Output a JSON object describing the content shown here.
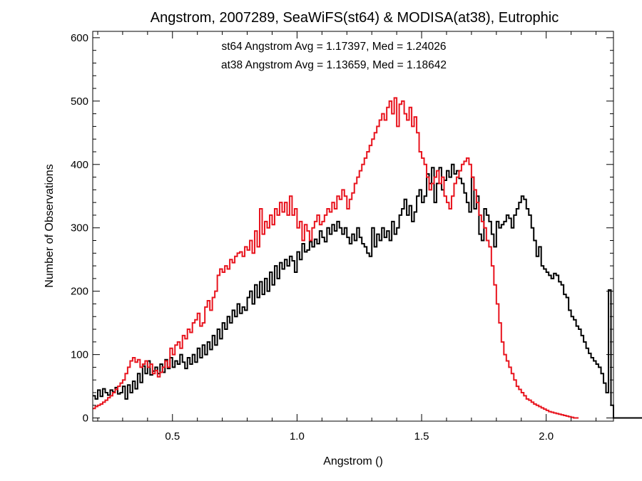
{
  "chart_data": {
    "type": "histogram-step",
    "title": "Angstrom, 2007289, SeaWiFS(st64) & MODISA(at38), Eutrophic",
    "xlabel": "Angstrom ()",
    "ylabel": "Number of Observations",
    "xlim": [
      0.18,
      2.27
    ],
    "ylim": [
      -5,
      610
    ],
    "xticks": [
      0.5,
      1.0,
      1.5,
      2.0
    ],
    "xtick_labels": [
      "0.5",
      "1.0",
      "1.5",
      "2.0"
    ],
    "yticks": [
      0,
      100,
      200,
      300,
      400,
      500,
      600
    ],
    "ytick_labels": [
      "0",
      "100",
      "200",
      "300",
      "400",
      "500",
      "600"
    ],
    "grid": false,
    "bin_start": 0.18,
    "bin_width": 0.01,
    "annotations": [
      {
        "text": "st64 Angstrom Avg = 1.17397, Med = 1.24026",
        "color": "#000000"
      },
      {
        "text": "at38 Angstrom Avg = 1.13659, Med = 1.18642",
        "color": "#e8141e"
      }
    ],
    "series": [
      {
        "color": "#000000",
        "values": [
          35,
          30,
          44,
          34,
          46,
          40,
          36,
          44,
          41,
          48,
          38,
          40,
          50,
          30,
          52,
          40,
          58,
          46,
          70,
          56,
          82,
          70,
          90,
          68,
          74,
          80,
          70,
          85,
          72,
          92,
          78,
          95,
          80,
          90,
          85,
          100,
          88,
          78,
          95,
          85,
          100,
          88,
          110,
          95,
          115,
          100,
          120,
          108,
          130,
          115,
          140,
          125,
          150,
          140,
          160,
          150,
          170,
          160,
          180,
          165,
          175,
          170,
          190,
          200,
          180,
          210,
          190,
          215,
          195,
          220,
          200,
          230,
          210,
          240,
          220,
          245,
          235,
          250,
          240,
          255,
          248,
          230,
          262,
          250,
          275,
          262,
          265,
          278,
          270,
          282,
          275,
          295,
          285,
          278,
          300,
          290,
          305,
          295,
          310,
          300,
          290,
          300,
          285,
          275,
          290,
          280,
          300,
          285,
          275,
          270,
          260,
          255,
          300,
          270,
          290,
          280,
          300,
          285,
          295,
          280,
          310,
          290,
          300,
          320,
          330,
          345,
          320,
          335,
          310,
          325,
          350,
          360,
          340,
          350,
          385,
          370,
          395,
          340,
          370,
          395,
          360,
          375,
          390,
          380,
          400,
          385,
          390,
          378,
          370,
          355,
          340,
          325,
          380,
          330,
          350,
          290,
          280,
          330,
          320,
          310,
          290,
          270,
          310,
          300,
          305,
          310,
          320,
          315,
          300,
          320,
          330,
          340,
          350,
          345,
          330,
          320,
          300,
          280,
          255,
          270,
          240,
          235,
          230,
          225,
          220,
          228,
          225,
          215,
          210,
          195,
          190,
          170,
          160,
          155,
          145,
          140,
          130,
          120,
          110,
          102,
          95,
          90,
          85,
          80,
          70,
          55,
          40,
          202,
          20,
          0,
          0,
          0,
          0,
          0,
          0,
          0,
          0,
          0,
          0,
          0,
          0,
          0,
          0
        ]
      },
      {
        "color": "#e8141e",
        "values": [
          15,
          18,
          20,
          22,
          25,
          28,
          32,
          35,
          40,
          45,
          50,
          55,
          60,
          70,
          80,
          90,
          95,
          88,
          92,
          80,
          85,
          90,
          80,
          85,
          70,
          75,
          65,
          72,
          80,
          90,
          80,
          110,
          100,
          115,
          120,
          110,
          130,
          125,
          140,
          135,
          150,
          155,
          165,
          145,
          150,
          175,
          185,
          170,
          190,
          200,
          225,
          235,
          230,
          240,
          235,
          250,
          245,
          255,
          260,
          262,
          255,
          270,
          265,
          280,
          260,
          295,
          270,
          330,
          290,
          310,
          300,
          320,
          305,
          330,
          320,
          340,
          325,
          340,
          320,
          350,
          320,
          330,
          300,
          310,
          280,
          305,
          295,
          280,
          300,
          310,
          320,
          305,
          310,
          320,
          330,
          325,
          340,
          330,
          350,
          345,
          360,
          350,
          330,
          345,
          355,
          370,
          380,
          390,
          400,
          410,
          420,
          430,
          440,
          450,
          460,
          470,
          480,
          470,
          490,
          500,
          480,
          505,
          460,
          495,
          500,
          480,
          470,
          490,
          460,
          475,
          450,
          420,
          410,
          400,
          380,
          360,
          370,
          380,
          390,
          370,
          380,
          350,
          340,
          330,
          350,
          370,
          380,
          390,
          400,
          405,
          410,
          400,
          380,
          360,
          340,
          320,
          310,
          300,
          280,
          270,
          240,
          210,
          180,
          150,
          120,
          100,
          90,
          80,
          70,
          60,
          50,
          45,
          40,
          35,
          30,
          28,
          25,
          22,
          20,
          18,
          16,
          14,
          12,
          10,
          9,
          8,
          7,
          6,
          5,
          4,
          3,
          2,
          1,
          0,
          0
        ]
      }
    ]
  }
}
